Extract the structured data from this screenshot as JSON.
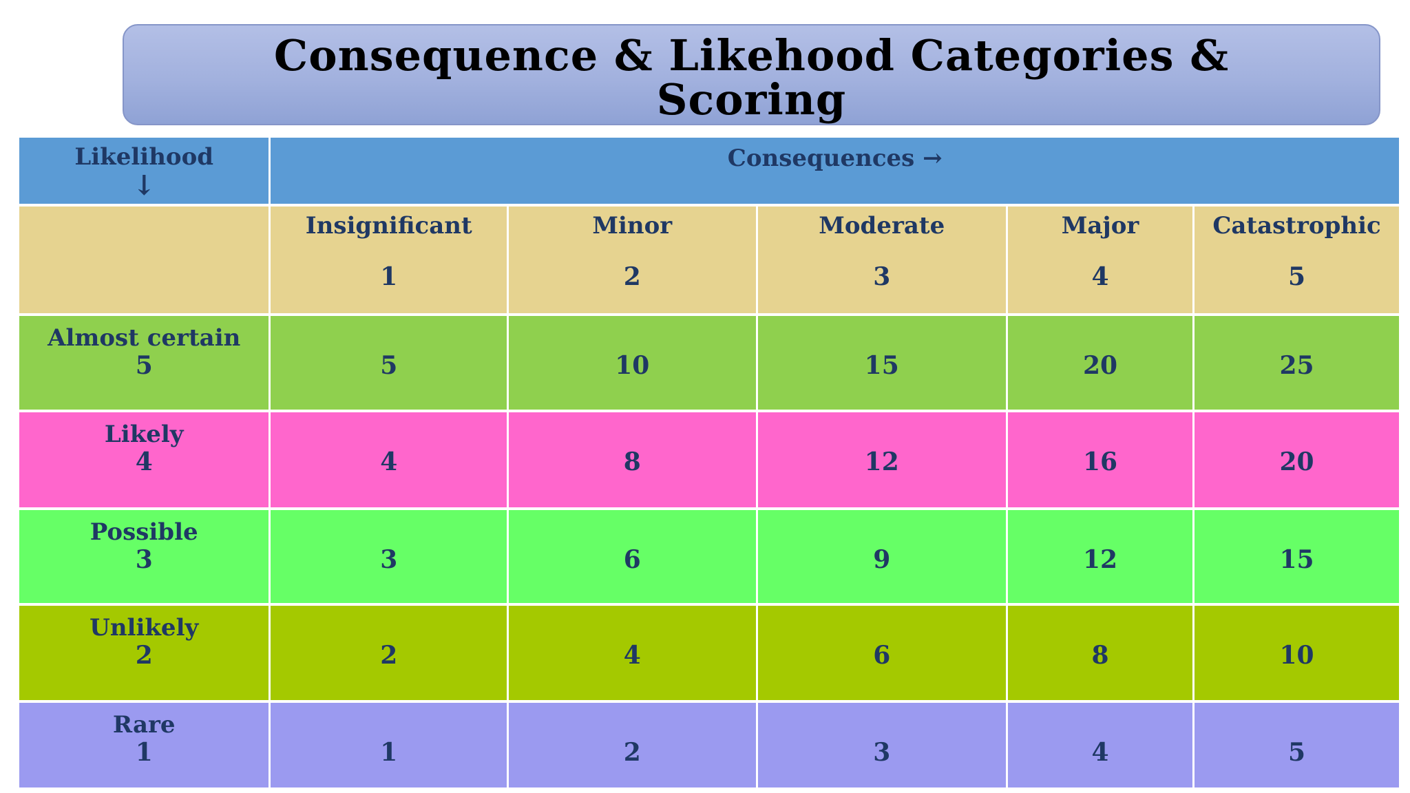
{
  "title": {
    "line1": "Consequence & Likehood Categories &",
    "line2": "Scoring"
  },
  "header": {
    "likelihood_label": "Likelihood",
    "likelihood_arrow": "↓",
    "consequences_label": "Consequences →"
  },
  "colors": {
    "header_blue": "#5B9BD5",
    "category_tan": "#E6D390",
    "text_navy": "#1F3864",
    "grid_line_white": "#FFFFFF",
    "title_gradient_top": "#B3BFE6",
    "title_gradient_bottom": "#8FA2D5",
    "title_border": "#8595C8",
    "title_text": "#000000"
  },
  "chart_data": {
    "type": "table",
    "title": "Consequence & Likehood Categories & Scoring",
    "row_axis_label": "Likelihood ↓",
    "column_axis_label": "Consequences →",
    "columns": [
      "Insignificant",
      "Minor",
      "Moderate",
      "Major",
      "Catastrophic"
    ],
    "column_scores": [
      1,
      2,
      3,
      4,
      5
    ],
    "rows": [
      "Almost certain",
      "Likely",
      "Possible",
      "Unlikely",
      "Rare"
    ],
    "row_scores": [
      5,
      4,
      3,
      2,
      1
    ],
    "values": [
      [
        5,
        10,
        15,
        20,
        25
      ],
      [
        4,
        8,
        12,
        16,
        20
      ],
      [
        3,
        6,
        9,
        12,
        15
      ],
      [
        2,
        4,
        6,
        8,
        10
      ],
      [
        1,
        2,
        3,
        4,
        5
      ]
    ],
    "row_colors": [
      "#8FD04E",
      "#FF66CC",
      "#66FF66",
      "#A4C900",
      "#9B9AF0"
    ],
    "header_color": "#5B9BD5",
    "category_row_color": "#E6D390"
  }
}
